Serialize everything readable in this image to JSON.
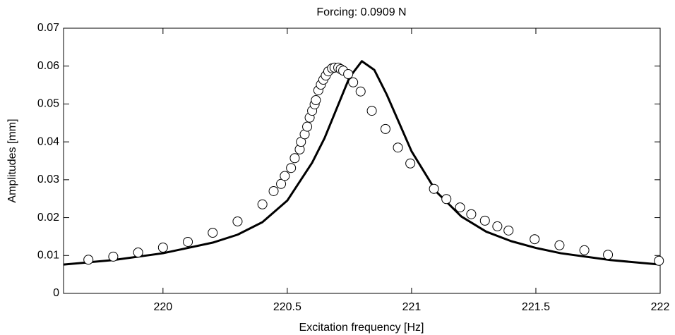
{
  "chart_data": {
    "type": "line",
    "title": "Forcing: 0.0909 N",
    "x_label": "Excitation frequency [Hz]",
    "y_label": "Amplitudes [mm]",
    "xlim": [
      219.6,
      222
    ],
    "ylim": [
      0,
      0.07
    ],
    "xticks": [
      220,
      220.5,
      221,
      221.5,
      222
    ],
    "yticks": [
      0,
      0.01,
      0.02,
      0.03,
      0.04,
      0.05,
      0.06,
      0.07
    ],
    "series": [
      {
        "mode": "line",
        "color": "#000000",
        "x": [
          219.6,
          219.8,
          220.0,
          220.2,
          220.3,
          220.4,
          220.5,
          220.6,
          220.65,
          220.7,
          220.75,
          220.8,
          220.85,
          220.9,
          220.95,
          221.0,
          221.1,
          221.2,
          221.3,
          221.4,
          221.5,
          221.6,
          221.8,
          222.0
        ],
        "values": [
          0.0076,
          0.0088,
          0.0106,
          0.0134,
          0.0155,
          0.0188,
          0.0245,
          0.0345,
          0.041,
          0.049,
          0.057,
          0.0613,
          0.059,
          0.0525,
          0.045,
          0.0375,
          0.0268,
          0.0203,
          0.0163,
          0.0138,
          0.012,
          0.0106,
          0.0088,
          0.0076
        ]
      },
      {
        "mode": "markers",
        "color": "#000000",
        "x": [
          219.7,
          219.8,
          219.9,
          220.0,
          220.1,
          220.2,
          220.3,
          220.4,
          220.445,
          220.475,
          220.49,
          220.515,
          220.53,
          220.55,
          220.555,
          220.57,
          220.58,
          220.59,
          220.6,
          220.61,
          220.615,
          220.625,
          220.635,
          220.645,
          220.655,
          220.665,
          220.68,
          220.69,
          220.705,
          220.715,
          220.725,
          220.745,
          220.765,
          220.795,
          220.84,
          220.895,
          220.945,
          220.995,
          221.09,
          221.14,
          221.195,
          221.24,
          221.295,
          221.345,
          221.39,
          221.495,
          221.595,
          221.695,
          221.79,
          221.995
        ],
        "values": [
          0.0089,
          0.0097,
          0.0108,
          0.0121,
          0.0136,
          0.016,
          0.019,
          0.0235,
          0.027,
          0.0289,
          0.031,
          0.0331,
          0.0357,
          0.038,
          0.04,
          0.042,
          0.044,
          0.0464,
          0.0482,
          0.0499,
          0.051,
          0.0536,
          0.0551,
          0.0564,
          0.0575,
          0.0586,
          0.0594,
          0.0596,
          0.0596,
          0.0592,
          0.0588,
          0.0579,
          0.0557,
          0.0533,
          0.0482,
          0.0434,
          0.0385,
          0.0343,
          0.0276,
          0.0249,
          0.0227,
          0.0209,
          0.0192,
          0.0177,
          0.0166,
          0.0143,
          0.0127,
          0.0114,
          0.0102,
          0.0086
        ]
      }
    ]
  }
}
